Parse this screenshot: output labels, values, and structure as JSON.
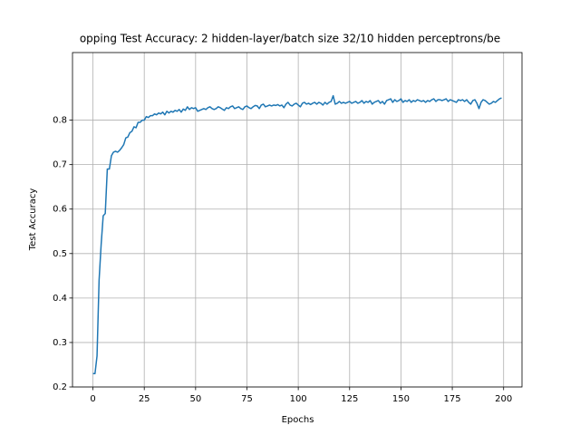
{
  "chart_data": {
    "type": "line",
    "title": "opping Test Accuracy: 2 hidden-layer/batch size 32/10 hidden perceptrons/be",
    "x_label": "Epochs",
    "y_label": "Test Accuracy",
    "x": [
      0,
      1,
      2,
      3,
      4,
      5,
      6,
      7,
      8,
      9,
      10,
      11,
      12,
      13,
      14,
      15,
      16,
      17,
      18,
      19,
      20,
      21,
      22,
      23,
      24,
      25,
      26,
      27,
      28,
      29,
      30,
      31,
      32,
      33,
      34,
      35,
      36,
      37,
      38,
      39,
      40,
      41,
      42,
      43,
      44,
      45,
      46,
      47,
      48,
      49,
      50,
      51,
      52,
      53,
      54,
      55,
      56,
      57,
      58,
      59,
      60,
      61,
      62,
      63,
      64,
      65,
      66,
      67,
      68,
      69,
      70,
      71,
      72,
      73,
      74,
      75,
      76,
      77,
      78,
      79,
      80,
      81,
      82,
      83,
      84,
      85,
      86,
      87,
      88,
      89,
      90,
      91,
      92,
      93,
      94,
      95,
      96,
      97,
      98,
      99,
      100,
      101,
      102,
      103,
      104,
      105,
      106,
      107,
      108,
      109,
      110,
      111,
      112,
      113,
      114,
      115,
      116,
      117,
      118,
      119,
      120,
      121,
      122,
      123,
      124,
      125,
      126,
      127,
      128,
      129,
      130,
      131,
      132,
      133,
      134,
      135,
      136,
      137,
      138,
      139,
      140,
      141,
      142,
      143,
      144,
      145,
      146,
      147,
      148,
      149,
      150,
      151,
      152,
      153,
      154,
      155,
      156,
      157,
      158,
      159,
      160,
      161,
      162,
      163,
      164,
      165,
      166,
      167,
      168,
      169,
      170,
      171,
      172,
      173,
      174,
      175,
      176,
      177,
      178,
      179,
      180,
      181,
      182,
      183,
      184,
      185,
      186,
      187,
      188,
      189,
      190,
      191,
      192,
      193,
      194,
      195,
      196,
      197,
      198,
      199
    ],
    "series": [
      {
        "color": "#1f77b4",
        "values": [
          0.23,
          0.23,
          0.27,
          0.44,
          0.52,
          0.585,
          0.59,
          0.69,
          0.69,
          0.72,
          0.728,
          0.73,
          0.728,
          0.732,
          0.738,
          0.745,
          0.76,
          0.762,
          0.772,
          0.775,
          0.785,
          0.783,
          0.795,
          0.795,
          0.8,
          0.8,
          0.808,
          0.806,
          0.81,
          0.81,
          0.814,
          0.812,
          0.816,
          0.814,
          0.818,
          0.812,
          0.82,
          0.816,
          0.82,
          0.818,
          0.822,
          0.82,
          0.824,
          0.818,
          0.825,
          0.822,
          0.83,
          0.824,
          0.828,
          0.826,
          0.828,
          0.82,
          0.822,
          0.824,
          0.826,
          0.824,
          0.828,
          0.83,
          0.826,
          0.824,
          0.826,
          0.83,
          0.828,
          0.825,
          0.822,
          0.828,
          0.826,
          0.83,
          0.832,
          0.826,
          0.828,
          0.83,
          0.826,
          0.824,
          0.83,
          0.832,
          0.828,
          0.826,
          0.83,
          0.833,
          0.832,
          0.826,
          0.834,
          0.836,
          0.83,
          0.832,
          0.834,
          0.832,
          0.834,
          0.833,
          0.835,
          0.832,
          0.834,
          0.828,
          0.836,
          0.84,
          0.834,
          0.832,
          0.836,
          0.838,
          0.834,
          0.83,
          0.838,
          0.84,
          0.836,
          0.838,
          0.835,
          0.838,
          0.84,
          0.836,
          0.84,
          0.838,
          0.834,
          0.84,
          0.836,
          0.84,
          0.842,
          0.855,
          0.836,
          0.838,
          0.842,
          0.838,
          0.84,
          0.838,
          0.84,
          0.842,
          0.838,
          0.84,
          0.842,
          0.838,
          0.84,
          0.844,
          0.838,
          0.842,
          0.84,
          0.844,
          0.836,
          0.84,
          0.842,
          0.844,
          0.838,
          0.842,
          0.836,
          0.844,
          0.846,
          0.848,
          0.84,
          0.846,
          0.842,
          0.844,
          0.848,
          0.84,
          0.844,
          0.842,
          0.846,
          0.84,
          0.844,
          0.842,
          0.846,
          0.844,
          0.842,
          0.844,
          0.84,
          0.844,
          0.842,
          0.846,
          0.848,
          0.842,
          0.846,
          0.846,
          0.844,
          0.846,
          0.848,
          0.842,
          0.846,
          0.844,
          0.842,
          0.84,
          0.846,
          0.844,
          0.846,
          0.842,
          0.846,
          0.84,
          0.836,
          0.844,
          0.846,
          0.838,
          0.826,
          0.84,
          0.846,
          0.844,
          0.84,
          0.836,
          0.838,
          0.842,
          0.84,
          0.844,
          0.848,
          0.85
        ]
      }
    ],
    "xlim": [
      -9.95,
      208.95
    ],
    "ylim": [
      0.2,
      0.952
    ],
    "xticks": [
      0,
      25,
      50,
      75,
      100,
      125,
      150,
      175,
      200
    ],
    "yticks": [
      0.2,
      0.3,
      0.4,
      0.5,
      0.6,
      0.7,
      0.8
    ],
    "grid": true
  }
}
